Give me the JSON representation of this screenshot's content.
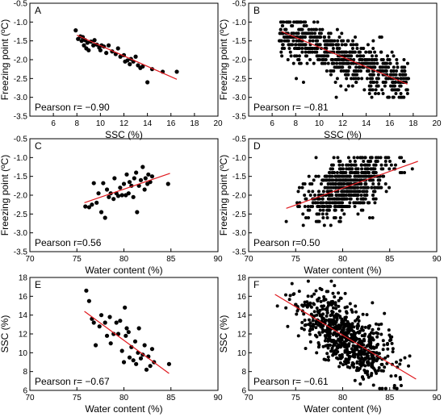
{
  "chart_data": [
    {
      "type": "scatter",
      "panel_label": "A",
      "annotation": "Pearson r= −0.90",
      "xlabel": "SSC (%)",
      "ylabel": "Freezing point (ºC)",
      "xlim": [
        4,
        20
      ],
      "ylim": [
        -3.5,
        -0.5
      ],
      "xticks": [
        6,
        8,
        10,
        12,
        14,
        16,
        18,
        20
      ],
      "yticks": [
        -3.5,
        -3.0,
        -2.5,
        -2.0,
        -1.5,
        -1.0,
        -0.5
      ],
      "xtick_labels": [
        "6",
        "8",
        "10",
        "12",
        "14",
        "16",
        "18",
        "20"
      ],
      "ytick_labels": [
        "-3.5",
        "-3.0",
        "-2.5",
        "-2.0",
        "-1.5",
        "-1.0",
        "-0.5"
      ],
      "fit_line": {
        "x": [
          8,
          16.5
        ],
        "y": [
          -1.35,
          -2.52
        ]
      },
      "points": [
        [
          7.9,
          -1.22
        ],
        [
          8.1,
          -1.45
        ],
        [
          8.3,
          -1.38
        ],
        [
          8.4,
          -1.5
        ],
        [
          8.5,
          -1.4
        ],
        [
          8.6,
          -1.62
        ],
        [
          8.7,
          -1.48
        ],
        [
          8.8,
          -1.7
        ],
        [
          8.9,
          -1.55
        ],
        [
          9.0,
          -1.75
        ],
        [
          9.2,
          -1.52
        ],
        [
          9.4,
          -1.62
        ],
        [
          9.5,
          -1.48
        ],
        [
          9.7,
          -1.6
        ],
        [
          9.9,
          -1.68
        ],
        [
          10.0,
          -1.75
        ],
        [
          10.1,
          -1.62
        ],
        [
          10.3,
          -1.65
        ],
        [
          10.5,
          -1.82
        ],
        [
          10.7,
          -1.62
        ],
        [
          11.0,
          -1.78
        ],
        [
          11.3,
          -1.85
        ],
        [
          11.5,
          -1.7
        ],
        [
          11.7,
          -1.92
        ],
        [
          12.0,
          -1.88
        ],
        [
          12.1,
          -2.05
        ],
        [
          12.3,
          -2.02
        ],
        [
          12.5,
          -2.12
        ],
        [
          12.6,
          -1.98
        ],
        [
          12.8,
          -2.05
        ],
        [
          13.0,
          -1.92
        ],
        [
          13.2,
          -2.15
        ],
        [
          13.4,
          -2.22
        ],
        [
          13.6,
          -2.18
        ],
        [
          14.0,
          -2.6
        ],
        [
          14.4,
          -2.25
        ],
        [
          15.3,
          -2.32
        ],
        [
          16.5,
          -2.32
        ]
      ]
    },
    {
      "type": "scatter",
      "panel_label": "B",
      "annotation": "Pearson r= −0.81",
      "xlabel": "SSC (%)",
      "ylabel": "Freezing point (ºC)",
      "xlim": [
        4,
        20
      ],
      "ylim": [
        -3.5,
        -0.5
      ],
      "xticks": [
        6,
        8,
        10,
        12,
        14,
        16,
        18,
        20
      ],
      "yticks": [
        -3.5,
        -3.0,
        -2.5,
        -2.0,
        -1.5,
        -1.0,
        -0.5
      ],
      "xtick_labels": [
        "6",
        "8",
        "10",
        "12",
        "14",
        "16",
        "18",
        "20"
      ],
      "ytick_labels": [
        "-3.5",
        "-3.0",
        "-2.5",
        "-2.0",
        "-1.5",
        "-1.0",
        "-0.5"
      ],
      "fit_line": {
        "x": [
          6.8,
          17.5
        ],
        "y": [
          -1.25,
          -2.65
        ]
      },
      "cloud": {
        "n": 640,
        "x_range": [
          6.6,
          17.6
        ],
        "y_step": 0.1,
        "y_clip": [
          -3.0,
          -1.0
        ],
        "slope": -0.131,
        "intercept": -0.36,
        "spread": 0.32
      }
    },
    {
      "type": "scatter",
      "panel_label": "C",
      "annotation": "Pearson r=0.56",
      "xlabel": "Water content (%)",
      "ylabel": "Freezing point (ºC)",
      "xlim": [
        70,
        90
      ],
      "ylim": [
        -3.5,
        -0.5
      ],
      "xticks": [
        70,
        75,
        80,
        85,
        90
      ],
      "yticks": [
        -3.5,
        -3.0,
        -2.5,
        -2.0,
        -1.5,
        -1.0,
        -0.5
      ],
      "xtick_labels": [
        "70",
        "75",
        "80",
        "85",
        "90"
      ],
      "ytick_labels": [
        "-3.5",
        "-3.0",
        "-2.5",
        "-2.0",
        "-1.5",
        "-1.0",
        "-0.5"
      ],
      "fit_line": {
        "x": [
          75.8,
          84.9
        ],
        "y": [
          -2.2,
          -1.42
        ]
      },
      "points": [
        [
          75.9,
          -2.3
        ],
        [
          76.3,
          -2.32
        ],
        [
          76.6,
          -2.25
        ],
        [
          76.8,
          -1.68
        ],
        [
          77.1,
          -2.2
        ],
        [
          77.3,
          -1.95
        ],
        [
          77.6,
          -2.45
        ],
        [
          77.8,
          -1.68
        ],
        [
          78.0,
          -2.6
        ],
        [
          78.2,
          -1.85
        ],
        [
          78.4,
          -2.05
        ],
        [
          78.6,
          -1.95
        ],
        [
          78.9,
          -2.1
        ],
        [
          79.0,
          -1.55
        ],
        [
          79.2,
          -1.95
        ],
        [
          79.4,
          -2.02
        ],
        [
          79.6,
          -1.8
        ],
        [
          79.8,
          -2.0
        ],
        [
          80.0,
          -1.7
        ],
        [
          80.2,
          -2.0
        ],
        [
          80.3,
          -1.45
        ],
        [
          80.5,
          -1.95
        ],
        [
          80.6,
          -1.65
        ],
        [
          80.8,
          -1.75
        ],
        [
          81.0,
          -2.05
        ],
        [
          81.1,
          -1.55
        ],
        [
          81.3,
          -1.4
        ],
        [
          81.4,
          -2.45
        ],
        [
          81.6,
          -1.75
        ],
        [
          81.8,
          -1.6
        ],
        [
          82.0,
          -1.25
        ],
        [
          82.2,
          -1.85
        ],
        [
          82.3,
          -1.55
        ],
        [
          82.5,
          -1.7
        ],
        [
          82.6,
          -1.45
        ],
        [
          82.8,
          -1.65
        ],
        [
          83.0,
          -1.5
        ],
        [
          84.7,
          -1.7
        ]
      ]
    },
    {
      "type": "scatter",
      "panel_label": "D",
      "annotation": "Pearson r=0.50",
      "xlabel": "Water content (%)",
      "ylabel": "Freezing point (ºC)",
      "xlim": [
        70,
        90
      ],
      "ylim": [
        -3.5,
        -0.5
      ],
      "xticks": [
        70,
        75,
        80,
        85,
        90
      ],
      "yticks": [
        -3.5,
        -3.0,
        -2.5,
        -2.0,
        -1.5,
        -1.0,
        -0.5
      ],
      "xtick_labels": [
        "70",
        "75",
        "80",
        "85",
        "90"
      ],
      "ytick_labels": [
        "-3.5",
        "-3.0",
        "-2.5",
        "-2.0",
        "-1.5",
        "-1.0",
        "-0.5"
      ],
      "fit_line": {
        "x": [
          74.0,
          88.0
        ],
        "y": [
          -2.35,
          -1.1
        ]
      },
      "cloud": {
        "n": 640,
        "x_range": [
          74.0,
          88.0
        ],
        "x_mean": 80.6,
        "x_sd": 2.2,
        "y_step": 0.1,
        "y_clip": [
          -3.0,
          -1.0
        ],
        "slope": 0.0893,
        "intercept": -8.96,
        "spread": 0.36
      }
    },
    {
      "type": "scatter",
      "panel_label": "E",
      "annotation": "Pearson r= −0.67",
      "xlabel": "Water content (%)",
      "ylabel": "SSC (%)",
      "xlim": [
        70,
        90
      ],
      "ylim": [
        6,
        18
      ],
      "xticks": [
        70,
        75,
        80,
        85,
        90
      ],
      "yticks": [
        6,
        8,
        10,
        12,
        14,
        16,
        18
      ],
      "xtick_labels": [
        "70",
        "75",
        "80",
        "85",
        "90"
      ],
      "ytick_labels": [
        "6",
        "8",
        "10",
        "12",
        "14",
        "16",
        "18"
      ],
      "fit_line": {
        "x": [
          75.8,
          84.8
        ],
        "y": [
          14.4,
          7.8
        ]
      },
      "points": [
        [
          76.0,
          16.6
        ],
        [
          76.3,
          15.5
        ],
        [
          76.6,
          13.6
        ],
        [
          76.8,
          13.2
        ],
        [
          77.0,
          10.8
        ],
        [
          77.4,
          12.8
        ],
        [
          77.6,
          14.0
        ],
        [
          78.0,
          13.2
        ],
        [
          78.2,
          11.8
        ],
        [
          78.5,
          13.8
        ],
        [
          78.6,
          11.0
        ],
        [
          78.9,
          12.0
        ],
        [
          79.2,
          13.2
        ],
        [
          79.4,
          12.0
        ],
        [
          79.6,
          13.4
        ],
        [
          79.8,
          10.2
        ],
        [
          80.0,
          9.0
        ],
        [
          80.1,
          14.8
        ],
        [
          80.2,
          11.8
        ],
        [
          80.3,
          12.6
        ],
        [
          80.5,
          12.2
        ],
        [
          80.6,
          9.5
        ],
        [
          80.8,
          10.6
        ],
        [
          81.0,
          9.2
        ],
        [
          81.2,
          11.2
        ],
        [
          81.3,
          8.8
        ],
        [
          81.5,
          10.0
        ],
        [
          81.6,
          12.6
        ],
        [
          81.8,
          9.4
        ],
        [
          82.0,
          9.8
        ],
        [
          82.2,
          10.8
        ],
        [
          82.4,
          8.2
        ],
        [
          82.6,
          9.6
        ],
        [
          82.8,
          8.6
        ],
        [
          83.0,
          10.4
        ],
        [
          83.2,
          9.0
        ],
        [
          84.8,
          8.8
        ]
      ]
    },
    {
      "type": "scatter",
      "panel_label": "F",
      "annotation": "Pearson r= −0.61",
      "xlabel": "Water content (%)",
      "ylabel": "SSC (%)",
      "xlim": [
        70,
        90
      ],
      "ylim": [
        6,
        18
      ],
      "xticks": [
        70,
        75,
        80,
        85,
        90
      ],
      "yticks": [
        6,
        8,
        10,
        12,
        14,
        16,
        18
      ],
      "xtick_labels": [
        "70",
        "75",
        "80",
        "85",
        "90"
      ],
      "ytick_labels": [
        "6",
        "8",
        "10",
        "12",
        "14",
        "16",
        "18"
      ],
      "fit_line": {
        "x": [
          72.8,
          87.8
        ],
        "y": [
          16.2,
          7.2
        ]
      },
      "cloud": {
        "n": 700,
        "x_range": [
          72.8,
          87.8
        ],
        "x_mean": 80.2,
        "x_sd": 2.5,
        "y_step": 0,
        "y_clip": [
          6.2,
          17.6
        ],
        "slope": -0.6,
        "intercept": 59.88,
        "spread": 1.6
      }
    }
  ]
}
